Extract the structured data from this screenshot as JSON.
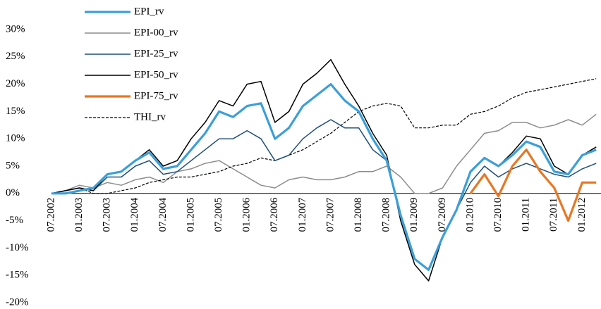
{
  "chart_data": {
    "type": "line",
    "categories": [
      "07.2002",
      null,
      "01.2003",
      null,
      "07.2003",
      null,
      "01.2004",
      null,
      "07.2004",
      null,
      "01.2005",
      null,
      "07.2005",
      null,
      "01.2006",
      null,
      "07.2006",
      null,
      "01.2007",
      null,
      "07.2007",
      null,
      "01.2008",
      null,
      "07.2008",
      null,
      "01.2009",
      null,
      "07.2009",
      null,
      "01.2010",
      null,
      "07.2010",
      null,
      "01.2011",
      null,
      "07.2011",
      null,
      "01.2012",
      null
    ],
    "series": [
      {
        "name": "EPI_rv",
        "color": "#3b9fd9",
        "values": [
          0,
          0,
          0.5,
          1,
          3.5,
          4,
          6,
          7.5,
          4.5,
          5,
          8,
          11,
          15,
          14,
          16,
          16.5,
          10,
          12,
          16,
          18,
          20,
          17,
          15,
          10,
          6,
          -4,
          -12,
          -14,
          -8,
          -3,
          4,
          6.5,
          5,
          7,
          9.5,
          8.5,
          4,
          3.5,
          7,
          8
        ]
      },
      {
        "name": "EPI-00_rv",
        "color": "#8c8c8c",
        "values": [
          0,
          0.5,
          1.5,
          1,
          2,
          1.5,
          2.5,
          3,
          2,
          4,
          4.5,
          5.5,
          6,
          4.5,
          3,
          1.5,
          1,
          2.5,
          3,
          2.5,
          2.5,
          3,
          4,
          4,
          5,
          3,
          0,
          0,
          1,
          5,
          8,
          11,
          11.5,
          13,
          13,
          12,
          12.5,
          13.5,
          12.5,
          14.5
        ]
      },
      {
        "name": "EPI-25_rv",
        "color": "#1f4e79",
        "values": [
          0,
          0.5,
          1,
          0.5,
          3,
          3,
          5,
          6,
          3.5,
          4,
          6,
          8,
          10,
          10,
          11.5,
          10,
          6,
          7,
          10,
          12,
          13.5,
          12,
          12,
          8,
          6,
          -4,
          -12,
          -14,
          -8,
          -3,
          2,
          5,
          3,
          4.5,
          5.5,
          4.5,
          3.5,
          3,
          4.5,
          5.5
        ]
      },
      {
        "name": "EPI-50_rv",
        "color": "#000000",
        "values": [
          0,
          0.5,
          1,
          0.5,
          3.5,
          4,
          6,
          8,
          5,
          6,
          10,
          13,
          17,
          16,
          20,
          20.5,
          13,
          15,
          20,
          22,
          24.5,
          20,
          16,
          11,
          7,
          -5,
          -13,
          -16,
          -8,
          -3,
          4,
          6.5,
          5,
          7.5,
          10.5,
          10,
          5,
          3.5,
          7,
          8.5
        ]
      },
      {
        "name": "EPI-75_rv",
        "color": "#e87722",
        "values": [
          null,
          null,
          null,
          null,
          null,
          null,
          null,
          null,
          null,
          null,
          null,
          null,
          null,
          null,
          null,
          null,
          null,
          null,
          null,
          null,
          null,
          null,
          null,
          null,
          null,
          null,
          null,
          null,
          null,
          null,
          0,
          3.5,
          -0.5,
          5,
          8,
          4,
          1,
          -5,
          2,
          2
        ]
      },
      {
        "name": "THI_rv",
        "color": "#000000",
        "dashed": true,
        "values": [
          0,
          0.5,
          1,
          0,
          0,
          0.5,
          1,
          2,
          2.5,
          3,
          3,
          3.5,
          4,
          5,
          5.5,
          6.5,
          6,
          7,
          8,
          9.5,
          11,
          13,
          15,
          16,
          16.5,
          16,
          12,
          12,
          12.5,
          12.5,
          14.5,
          15,
          16,
          17.5,
          18.5,
          19,
          19.5,
          20,
          20.5,
          21
        ]
      }
    ],
    "ylim": [
      -20,
      30
    ],
    "yticks": [
      {
        "value": -20,
        "label": "-20%"
      },
      {
        "value": -15,
        "label": "-15%"
      },
      {
        "value": -10,
        "label": "-10%"
      },
      {
        "value": -5,
        "label": "-5%"
      },
      {
        "value": 0,
        "label": "0%"
      },
      {
        "value": 5,
        "label": "5%"
      },
      {
        "value": 10,
        "label": "10%"
      },
      {
        "value": 15,
        "label": "15%"
      },
      {
        "value": 20,
        "label": "20%"
      },
      {
        "value": 25,
        "label": "25%"
      },
      {
        "value": 30,
        "label": "30%"
      }
    ],
    "legend": "top-left",
    "grid": false
  }
}
